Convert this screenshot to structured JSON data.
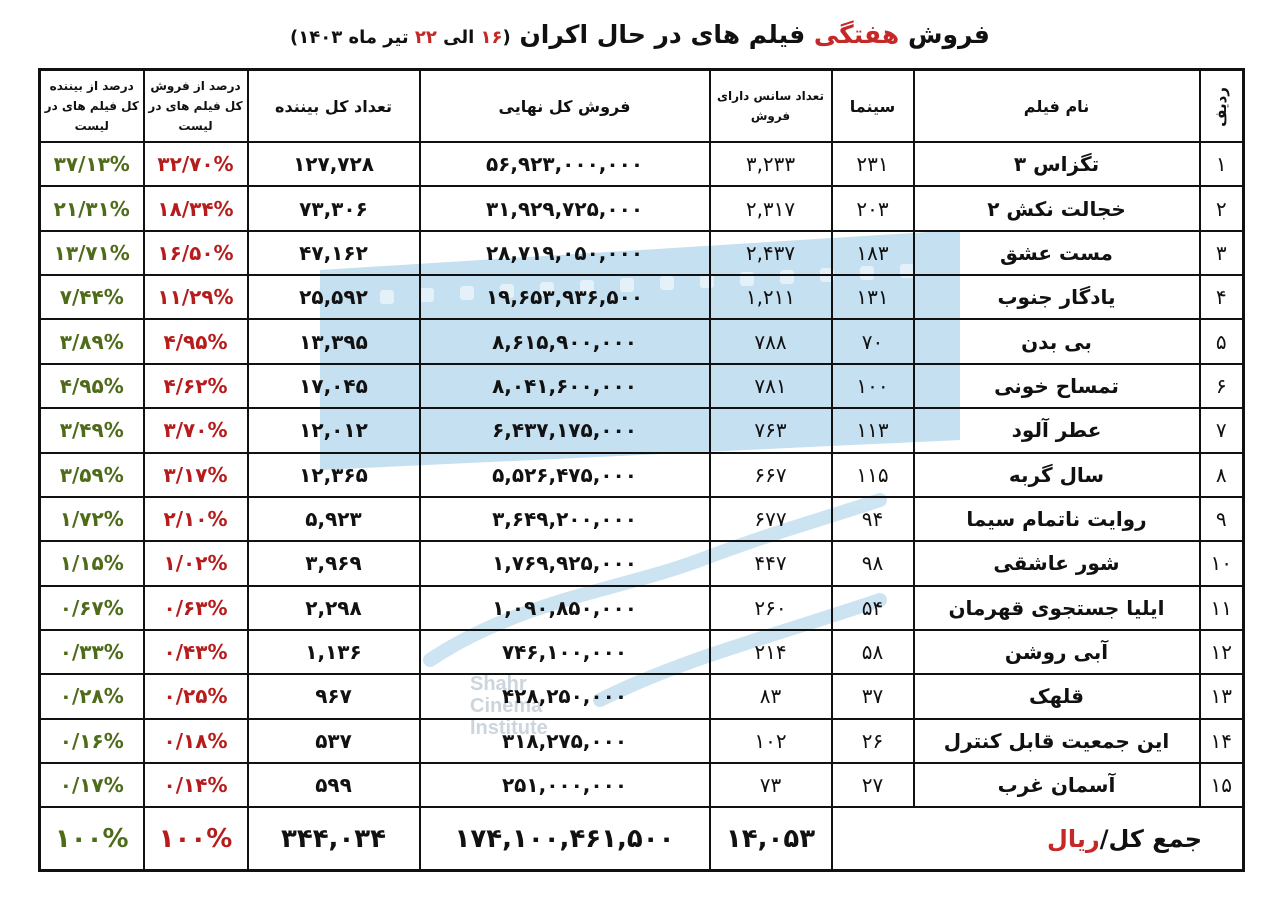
{
  "title": {
    "prefix": "فروش ",
    "highlight": "هفتگی",
    "rest": " فیلم های در حال اکران ",
    "range_open": "(",
    "from_day": "۱۶",
    "range_mid": " الی ",
    "to_day": "۲۲",
    "range_month": " تیر ماه ",
    "year": "۱۴۰۳",
    "range_close": ")"
  },
  "headers": {
    "rownum": "ردیف",
    "film": "نام فیلم",
    "cinemas": "سینما",
    "sessions": "تعداد سانس دارای فروش",
    "sales": "فروش کل نهایی",
    "viewers": "تعداد کل بیننده",
    "pct_sales": "درصد از فروش کل فیلم های در لیست",
    "pct_viewers": "درصد از بیننده کل فیلم های در لیست"
  },
  "rows": [
    {
      "n": "۱",
      "film": "تگزاس ۳",
      "cinemas": "۲۳۱",
      "sessions": "۳,۲۳۳",
      "sales": "۵۶,۹۲۳,۰۰۰,۰۰۰",
      "viewers": "۱۲۷,۷۲۸",
      "pct_sales": "۳۲/۷۰%",
      "pct_viewers": "۳۷/۱۳%"
    },
    {
      "n": "۲",
      "film": "خجالت نکش ۲",
      "cinemas": "۲۰۳",
      "sessions": "۲,۳۱۷",
      "sales": "۳۱,۹۲۹,۷۲۵,۰۰۰",
      "viewers": "۷۳,۳۰۶",
      "pct_sales": "۱۸/۳۴%",
      "pct_viewers": "۲۱/۳۱%"
    },
    {
      "n": "۳",
      "film": "مست عشق",
      "cinemas": "۱۸۳",
      "sessions": "۲,۴۳۷",
      "sales": "۲۸,۷۱۹,۰۵۰,۰۰۰",
      "viewers": "۴۷,۱۶۲",
      "pct_sales": "۱۶/۵۰%",
      "pct_viewers": "۱۳/۷۱%"
    },
    {
      "n": "۴",
      "film": "یادگار جنوب",
      "cinemas": "۱۳۱",
      "sessions": "۱,۲۱۱",
      "sales": "۱۹,۶۵۳,۹۳۶,۵۰۰",
      "viewers": "۲۵,۵۹۲",
      "pct_sales": "۱۱/۲۹%",
      "pct_viewers": "۷/۴۴%"
    },
    {
      "n": "۵",
      "film": "بی بدن",
      "cinemas": "۷۰",
      "sessions": "۷۸۸",
      "sales": "۸,۶۱۵,۹۰۰,۰۰۰",
      "viewers": "۱۳,۳۹۵",
      "pct_sales": "۴/۹۵%",
      "pct_viewers": "۳/۸۹%"
    },
    {
      "n": "۶",
      "film": "تمساح خونی",
      "cinemas": "۱۰۰",
      "sessions": "۷۸۱",
      "sales": "۸,۰۴۱,۶۰۰,۰۰۰",
      "viewers": "۱۷,۰۴۵",
      "pct_sales": "۴/۶۲%",
      "pct_viewers": "۴/۹۵%"
    },
    {
      "n": "۷",
      "film": "عطر آلود",
      "cinemas": "۱۱۳",
      "sessions": "۷۶۳",
      "sales": "۶,۴۳۷,۱۷۵,۰۰۰",
      "viewers": "۱۲,۰۱۲",
      "pct_sales": "۳/۷۰%",
      "pct_viewers": "۳/۴۹%"
    },
    {
      "n": "۸",
      "film": "سال گربه",
      "cinemas": "۱۱۵",
      "sessions": "۶۶۷",
      "sales": "۵,۵۲۶,۴۷۵,۰۰۰",
      "viewers": "۱۲,۳۶۵",
      "pct_sales": "۳/۱۷%",
      "pct_viewers": "۳/۵۹%"
    },
    {
      "n": "۹",
      "film": "روایت ناتمام سیما",
      "cinemas": "۹۴",
      "sessions": "۶۷۷",
      "sales": "۳,۶۴۹,۲۰۰,۰۰۰",
      "viewers": "۵,۹۲۳",
      "pct_sales": "۲/۱۰%",
      "pct_viewers": "۱/۷۲%"
    },
    {
      "n": "۱۰",
      "film": "شور عاشقی",
      "cinemas": "۹۸",
      "sessions": "۴۴۷",
      "sales": "۱,۷۶۹,۹۲۵,۰۰۰",
      "viewers": "۳,۹۶۹",
      "pct_sales": "۱/۰۲%",
      "pct_viewers": "۱/۱۵%"
    },
    {
      "n": "۱۱",
      "film": "ایلیا جستجوی قهرمان",
      "cinemas": "۵۴",
      "sessions": "۲۶۰",
      "sales": "۱,۰۹۰,۸۵۰,۰۰۰",
      "viewers": "۲,۲۹۸",
      "pct_sales": "۰/۶۳%",
      "pct_viewers": "۰/۶۷%"
    },
    {
      "n": "۱۲",
      "film": "آبی روشن",
      "cinemas": "۵۸",
      "sessions": "۲۱۴",
      "sales": "۷۴۶,۱۰۰,۰۰۰",
      "viewers": "۱,۱۳۶",
      "pct_sales": "۰/۴۳%",
      "pct_viewers": "۰/۳۳%"
    },
    {
      "n": "۱۳",
      "film": "قلهک",
      "cinemas": "۳۷",
      "sessions": "۸۳",
      "sales": "۴۲۸,۲۵۰,۰۰۰",
      "viewers": "۹۶۷",
      "pct_sales": "۰/۲۵%",
      "pct_viewers": "۰/۲۸%"
    },
    {
      "n": "۱۴",
      "film": "این جمعیت قابل کنترل",
      "cinemas": "۲۶",
      "sessions": "۱۰۲",
      "sales": "۳۱۸,۲۷۵,۰۰۰",
      "viewers": "۵۳۷",
      "pct_sales": "۰/۱۸%",
      "pct_viewers": "۰/۱۶%"
    },
    {
      "n": "۱۵",
      "film": "آسمان غرب",
      "cinemas": "۲۷",
      "sessions": "۷۳",
      "sales": "۲۵۱,۰۰۰,۰۰۰",
      "viewers": "۵۹۹",
      "pct_sales": "۰/۱۴%",
      "pct_viewers": "۰/۱۷%"
    }
  ],
  "total": {
    "label": "جمع کل/",
    "unit": "ریال",
    "sessions": "۱۴,۰۵۳",
    "sales": "۱۷۴,۱۰۰,۴۶۱,۵۰۰",
    "viewers": "۳۴۴,۰۳۴",
    "pct_sales": "۱۰۰%",
    "pct_viewers": "۱۰۰%"
  },
  "watermark": {
    "line1": "Shahr",
    "line2": "Cinema",
    "line3": "Institute",
    "color": "#5aa6d6"
  },
  "colors": {
    "accent_red": "#c62828",
    "pct_sales": "#b71c1c",
    "pct_viewers": "#4e6b1a"
  }
}
